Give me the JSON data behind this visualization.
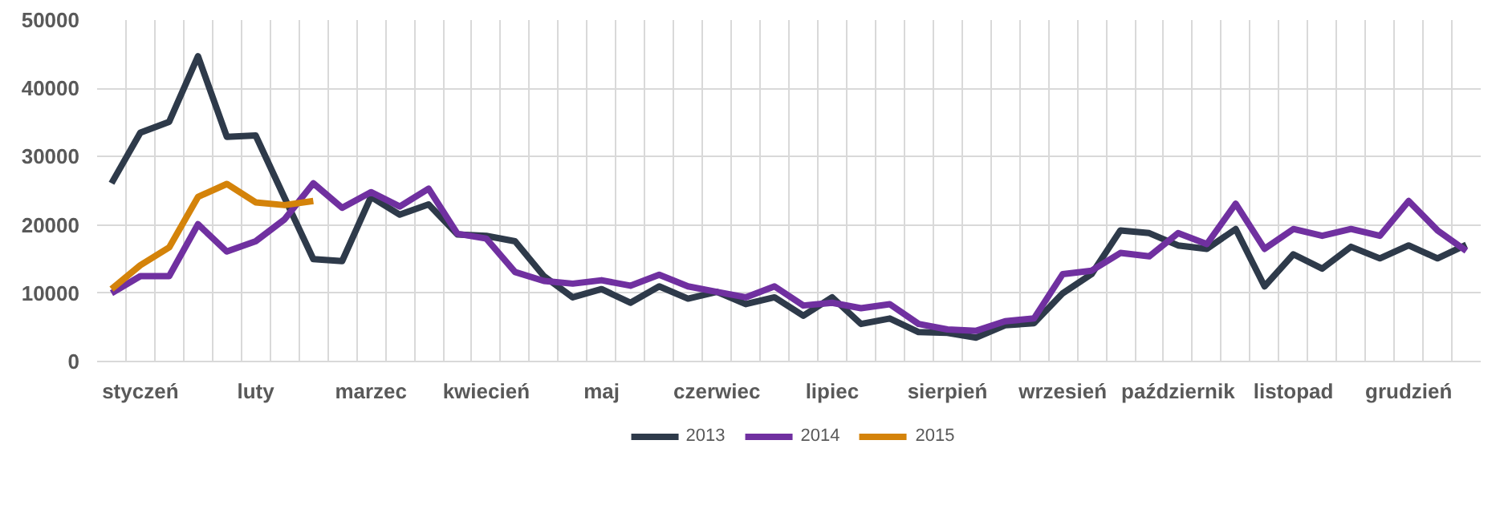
{
  "chart_data": {
    "type": "line",
    "categories": [
      null,
      "styczeń",
      null,
      null,
      null,
      "luty",
      null,
      null,
      null,
      "marzec",
      null,
      null,
      null,
      "kwiecień",
      null,
      null,
      null,
      "maj",
      null,
      null,
      null,
      "czerwiec",
      null,
      null,
      null,
      "lipiec",
      null,
      null,
      null,
      "sierpień",
      null,
      null,
      null,
      "wrzesień",
      null,
      null,
      null,
      "październik",
      null,
      null,
      null,
      "listopad",
      null,
      null,
      null,
      "grudzień",
      null,
      null
    ],
    "ylim": [
      0,
      50000
    ],
    "yticks": [
      0,
      10000,
      20000,
      30000,
      40000,
      50000
    ],
    "grid": true,
    "legend": "bottom",
    "line_style": "solid",
    "marker": "none",
    "series": [
      {
        "name": "2013",
        "color": "#2e3a4a",
        "values": [
          26100,
          33500,
          35100,
          44700,
          32900,
          33100,
          24000,
          15000,
          14700,
          24100,
          21500,
          23000,
          18600,
          18400,
          17600,
          12500,
          9400,
          10600,
          8600,
          11000,
          9200,
          10200,
          8400,
          9400,
          6700,
          9400,
          5500,
          6300,
          4300,
          4200,
          3500,
          5300,
          5600,
          10000,
          12800,
          19200,
          18800,
          17000,
          16500,
          19400,
          11000,
          15700,
          13600,
          16800,
          15100,
          17000,
          15100,
          17100
        ]
      },
      {
        "name": "2014",
        "color": "#7030a0",
        "values": [
          10000,
          12500,
          12500,
          20100,
          16100,
          17600,
          20800,
          26100,
          22500,
          24800,
          22700,
          25300,
          18700,
          18000,
          13100,
          11800,
          11400,
          11900,
          11100,
          12700,
          11000,
          10200,
          9400,
          11000,
          8200,
          8600,
          7800,
          8400,
          5500,
          4700,
          4500,
          5900,
          6300,
          12800,
          13300,
          15900,
          15400,
          18800,
          17200,
          23100,
          16500,
          19400,
          18400,
          19400,
          18400,
          23500,
          19200,
          16200
        ]
      },
      {
        "name": "2015",
        "color": "#d4830a",
        "values": [
          10600,
          14100,
          16700,
          24100,
          26000,
          23300,
          22900,
          23500,
          null,
          null,
          null,
          null,
          null,
          null,
          null,
          null,
          null,
          null,
          null,
          null,
          null,
          null,
          null,
          null,
          null,
          null,
          null,
          null,
          null,
          null,
          null,
          null,
          null,
          null,
          null,
          null,
          null,
          null,
          null,
          null,
          null,
          null,
          null,
          null,
          null,
          null,
          null,
          null
        ]
      }
    ]
  }
}
